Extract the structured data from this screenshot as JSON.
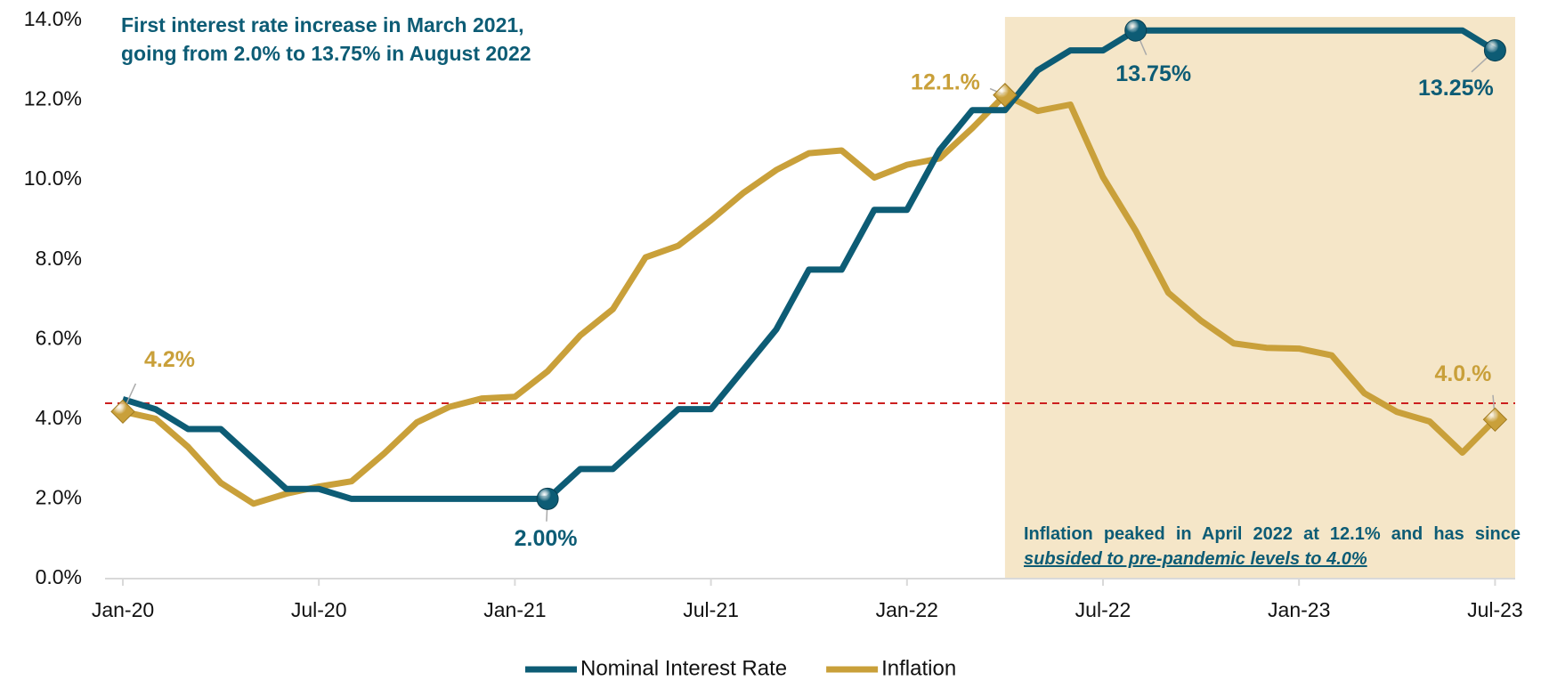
{
  "chart_data": {
    "type": "line",
    "categories": [
      "Jan-20",
      null,
      null,
      null,
      null,
      null,
      "Jul-20",
      null,
      null,
      null,
      null,
      null,
      "Jan-21",
      null,
      null,
      null,
      null,
      null,
      "Jul-21",
      null,
      null,
      null,
      null,
      null,
      "Jan-22",
      null,
      null,
      null,
      null,
      null,
      "Jul-22",
      null,
      null,
      null,
      null,
      null,
      "Jan-23",
      null,
      null,
      null,
      null,
      null,
      "Jul-23"
    ],
    "series": [
      {
        "name": "Inflation",
        "color": "#c9a03a",
        "marker": "diamond",
        "values": [
          4.19,
          4.01,
          3.3,
          2.4,
          1.88,
          2.13,
          2.31,
          2.44,
          3.14,
          3.92,
          4.31,
          4.52,
          4.56,
          5.2,
          6.1,
          6.76,
          8.06,
          8.35,
          8.99,
          9.68,
          10.25,
          10.67,
          10.74,
          10.06,
          10.38,
          10.54,
          11.3,
          12.13,
          11.73,
          11.89,
          10.07,
          8.73,
          7.17,
          6.47,
          5.9,
          5.79,
          5.77,
          5.6,
          4.65,
          4.18,
          3.94,
          3.16,
          3.99
        ],
        "value_labels": [
          "4.2%",
          null,
          null,
          null,
          null,
          null,
          null,
          null,
          null,
          null,
          null,
          null,
          null,
          null,
          null,
          null,
          null,
          null,
          null,
          null,
          null,
          null,
          null,
          null,
          null,
          null,
          null,
          "12.1.%",
          null,
          null,
          null,
          null,
          null,
          null,
          null,
          null,
          null,
          null,
          null,
          null,
          null,
          null,
          "4.0.%"
        ]
      },
      {
        "name": "Nominal Interest Rate",
        "color": "#0d5c75",
        "marker": "circle",
        "values": [
          4.5,
          4.25,
          3.75,
          3.75,
          3.0,
          2.25,
          2.25,
          2.0,
          2.0,
          2.0,
          2.0,
          2.0,
          2.0,
          2.0,
          2.75,
          2.75,
          3.5,
          4.25,
          4.25,
          5.25,
          6.25,
          7.75,
          7.75,
          9.25,
          9.25,
          10.75,
          11.75,
          11.75,
          12.75,
          13.25,
          13.25,
          13.75,
          13.75,
          13.75,
          13.75,
          13.75,
          13.75,
          13.75,
          13.75,
          13.75,
          13.75,
          13.75,
          13.25
        ],
        "value_labels": [
          null,
          null,
          null,
          null,
          null,
          null,
          null,
          null,
          null,
          null,
          null,
          null,
          null,
          "2.00%",
          null,
          null,
          null,
          null,
          null,
          null,
          null,
          null,
          null,
          null,
          null,
          null,
          null,
          null,
          null,
          null,
          null,
          "13.75%",
          null,
          null,
          null,
          null,
          null,
          null,
          null,
          null,
          null,
          null,
          "13.25%"
        ]
      }
    ],
    "legend_order": [
      1,
      0
    ],
    "ylim": [
      0,
      14
    ],
    "yticks": [
      {
        "value": 0,
        "label": "0.0%"
      },
      {
        "value": 2,
        "label": "2.0%"
      },
      {
        "value": 4,
        "label": "4.0%"
      },
      {
        "value": 6,
        "label": "6.0%"
      },
      {
        "value": 8,
        "label": "8.0%"
      },
      {
        "value": 10,
        "label": "10.0%"
      },
      {
        "value": 12,
        "label": "12.0%"
      },
      {
        "value": 14,
        "label": "14.0%"
      }
    ],
    "reference_line": {
      "value": 4.4,
      "color": "#cc1f1f"
    },
    "shaded_range": {
      "from": 27,
      "to": 42.7,
      "color": "#f5e6c8"
    },
    "annotations": [
      {
        "lines": [
          "First interest rate increase in March 2021,",
          "going from 2.0% to 13.75% in August 2022"
        ]
      },
      {
        "text": "Inflation peaked in April 2022 at 12.1% and has since",
        "emphasis": "subsided to pre-pandemic levels to 4.0%"
      }
    ]
  }
}
